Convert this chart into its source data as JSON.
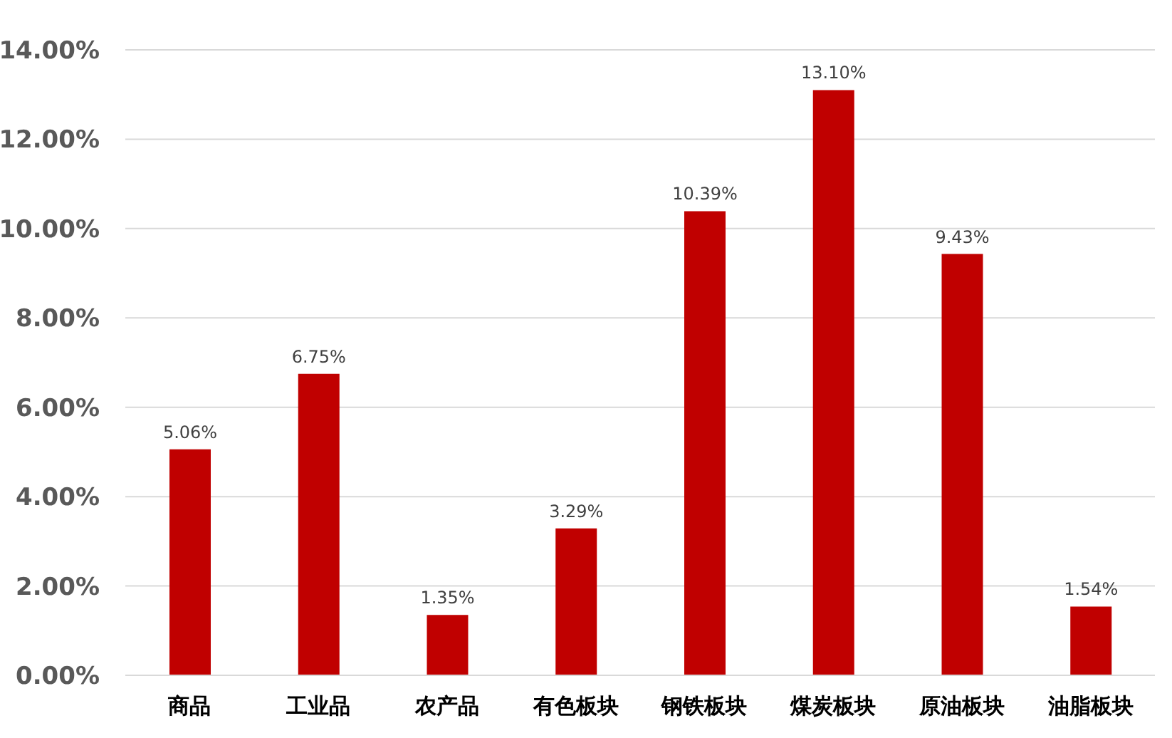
{
  "chart_data": {
    "type": "bar",
    "categories": [
      "商品",
      "工业品",
      "农产品",
      "有色板块",
      "钢铁板块",
      "煤炭板块",
      "原油板块",
      "油脂板块"
    ],
    "values": [
      5.06,
      6.75,
      1.35,
      3.29,
      10.39,
      13.1,
      9.43,
      1.54
    ],
    "value_labels": [
      "5.06%",
      "6.75%",
      "1.35%",
      "3.29%",
      "10.39%",
      "13.10%",
      "9.43%",
      "1.54%"
    ],
    "color": "#c00000",
    "ylim": [
      0,
      14
    ],
    "yticks": [
      {
        "value": 0,
        "label": "0.00%"
      },
      {
        "value": 2,
        "label": "2.00%"
      },
      {
        "value": 4,
        "label": "4.00%"
      },
      {
        "value": 6,
        "label": "6.00%"
      },
      {
        "value": 8,
        "label": "8.00%"
      },
      {
        "value": 10,
        "label": "10.00%"
      },
      {
        "value": 12,
        "label": "12.00%"
      },
      {
        "value": 14,
        "label": "14.00%"
      }
    ],
    "grid": "y",
    "legend": false
  }
}
